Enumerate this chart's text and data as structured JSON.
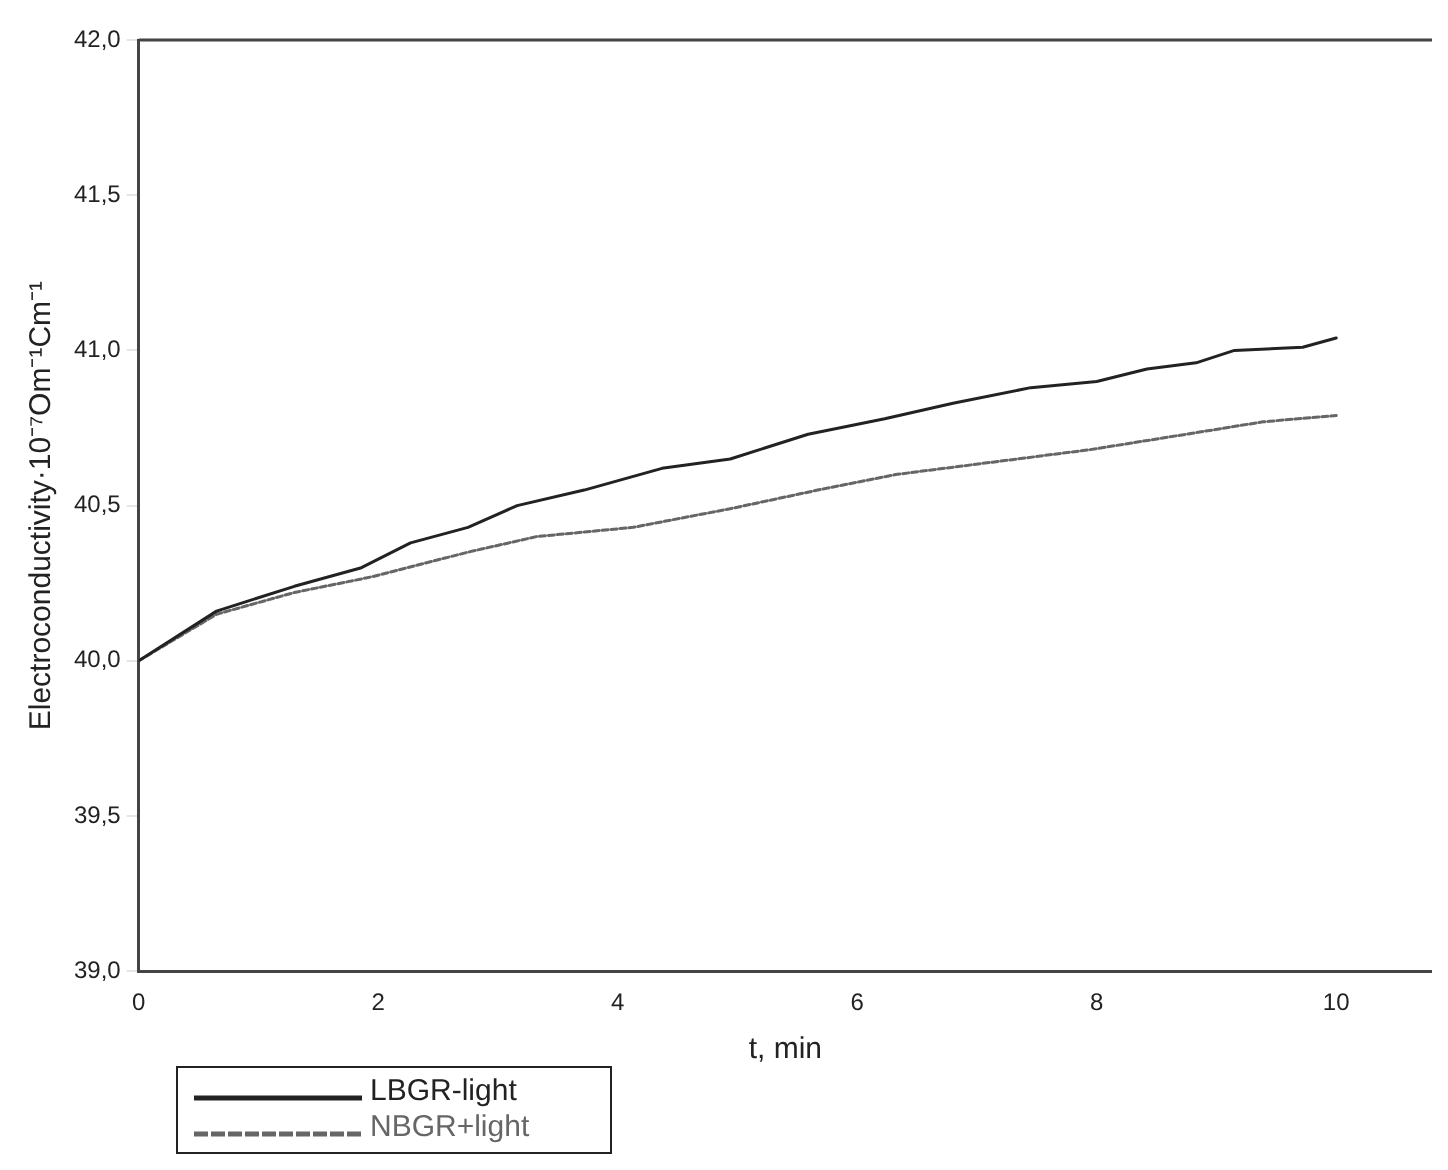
{
  "chart_data": {
    "type": "line",
    "xlabel": "t, min",
    "ylabel": "Electroconductivity·10⁻⁷Om⁻¹Cm⁻¹",
    "xlim": [
      0,
      10.8
    ],
    "xticks": [
      0,
      2,
      4,
      6,
      8,
      10
    ],
    "ylim": [
      39,
      42
    ],
    "yticks": [
      {
        "value": 39,
        "label": "39,0"
      },
      {
        "value": 39.5,
        "label": "39,5"
      },
      {
        "value": 40,
        "label": "40,0"
      },
      {
        "value": 40.5,
        "label": "40,5"
      },
      {
        "value": 41,
        "label": "41,0"
      },
      {
        "value": 41.5,
        "label": "41,5"
      },
      {
        "value": 42,
        "label": "42,0"
      }
    ],
    "grid": false,
    "legend": "bottom left",
    "marker": "none",
    "series": [
      {
        "name": "LBGR-light",
        "color": "#222222",
        "line_style": "solid",
        "x": [
          0,
          0.65,
          1.3,
          1.86,
          2.27,
          2.75,
          3.16,
          3.72,
          4.37,
          4.94,
          5.59,
          6.23,
          6.8,
          7.45,
          8.0,
          8.42,
          8.83,
          9.15,
          9.72,
          10
        ],
        "values": [
          40.0,
          40.16,
          40.24,
          40.3,
          40.38,
          40.43,
          40.5,
          40.55,
          40.62,
          40.65,
          40.73,
          40.78,
          40.83,
          40.88,
          40.9,
          40.94,
          40.96,
          41.0,
          41.01,
          41.04
        ]
      },
      {
        "name": "NBGR+light",
        "color": "#666666",
        "line_style": "dotted",
        "x": [
          0,
          0.65,
          1.3,
          1.94,
          2.75,
          3.32,
          4.13,
          4.94,
          5.67,
          6.32,
          7.13,
          7.94,
          8.75,
          9.39,
          10
        ],
        "values": [
          40.0,
          40.15,
          40.22,
          40.27,
          40.35,
          40.4,
          40.43,
          40.49,
          40.55,
          40.6,
          40.64,
          40.68,
          40.73,
          40.77,
          40.79
        ]
      }
    ]
  }
}
